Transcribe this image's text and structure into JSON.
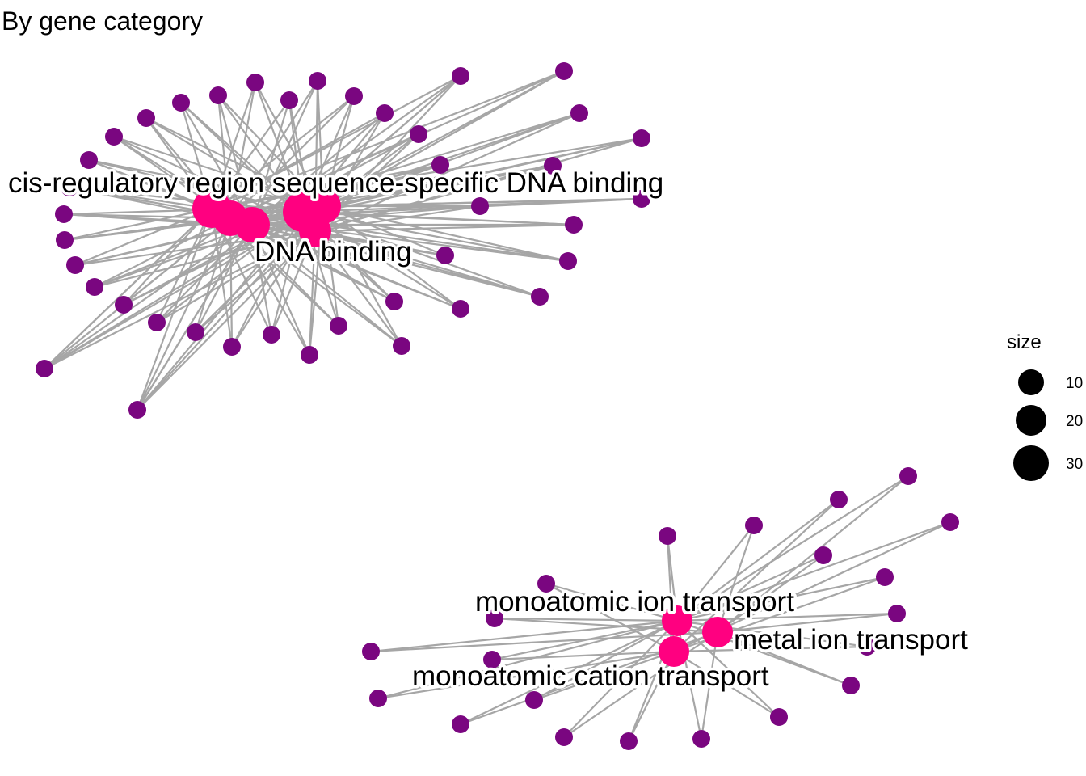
{
  "title": "By gene category",
  "colors": {
    "category": "#ff0080",
    "gene": "#7a0680",
    "edge": "#a6a6a6",
    "text": "#000000"
  },
  "legend": {
    "title": "size",
    "items": [
      {
        "label": "10",
        "size": 10
      },
      {
        "label": "20",
        "size": 20
      },
      {
        "label": "30",
        "size": 30
      }
    ]
  },
  "network": {
    "categories": [
      {
        "id": "c1",
        "label": "cis-regulatory region sequence-specific DNA binding"
      },
      {
        "id": "c2",
        "label": "DNA binding"
      },
      {
        "id": "c3",
        "label": "monoatomic ion transport"
      },
      {
        "id": "c4",
        "label": "metal ion transport"
      },
      {
        "id": "c5",
        "label": "monoatomic cation transport"
      }
    ]
  }
}
